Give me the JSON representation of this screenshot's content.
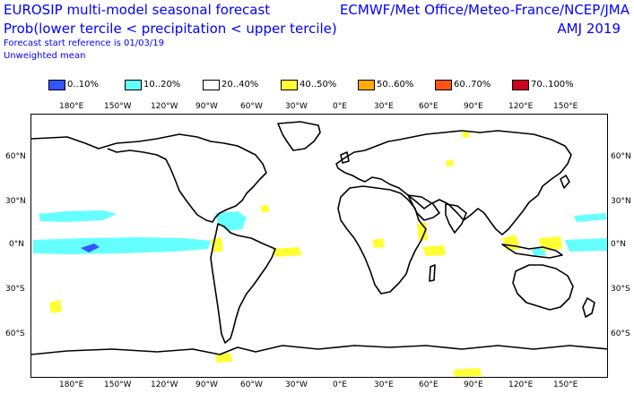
{
  "header": {
    "title": "EUROSIP multi-model seasonal forecast",
    "subtitle": "Prob(lower tercile < precipitation < upper tercile)",
    "forecast_ref": "Forecast start reference is 01/03/19",
    "mean_type": "Unweighted mean",
    "models": "ECMWF/Met Office/Meteo-France/NCEP/JMA",
    "season": "AMJ 2019"
  },
  "legend": [
    {
      "label": "0..10%",
      "color": "#3355ff"
    },
    {
      "label": "10..20%",
      "color": "#66ffff"
    },
    {
      "label": "20..40%",
      "color": "#ffffff"
    },
    {
      "label": "40..50%",
      "color": "#ffff33"
    },
    {
      "label": "50..60%",
      "color": "#ffaa00"
    },
    {
      "label": "60..70%",
      "color": "#ff5511"
    },
    {
      "label": "70..100%",
      "color": "#cc0022"
    }
  ],
  "axes": {
    "lon_top": [
      "180°E",
      "150°W",
      "120°W",
      "90°W",
      "60°W",
      "30°W",
      "0°E",
      "30°E",
      "60°E",
      "90°E",
      "120°E",
      "150°E"
    ],
    "lon_bottom": [
      "180°E",
      "150°W",
      "120°W",
      "90°W",
      "60°W",
      "30°W",
      "0°E",
      "30°E",
      "60°E",
      "90°E",
      "120°E",
      "150°E"
    ],
    "lat_left": [
      "60°N",
      "30°N",
      "0°N",
      "30°S",
      "60°S"
    ],
    "lat_right": [
      "60°N",
      "30°N",
      "0°N",
      "30°S",
      "60°S"
    ]
  },
  "colors": {
    "text": "#0000ff",
    "coast": "#000000",
    "frame": "#000000"
  }
}
